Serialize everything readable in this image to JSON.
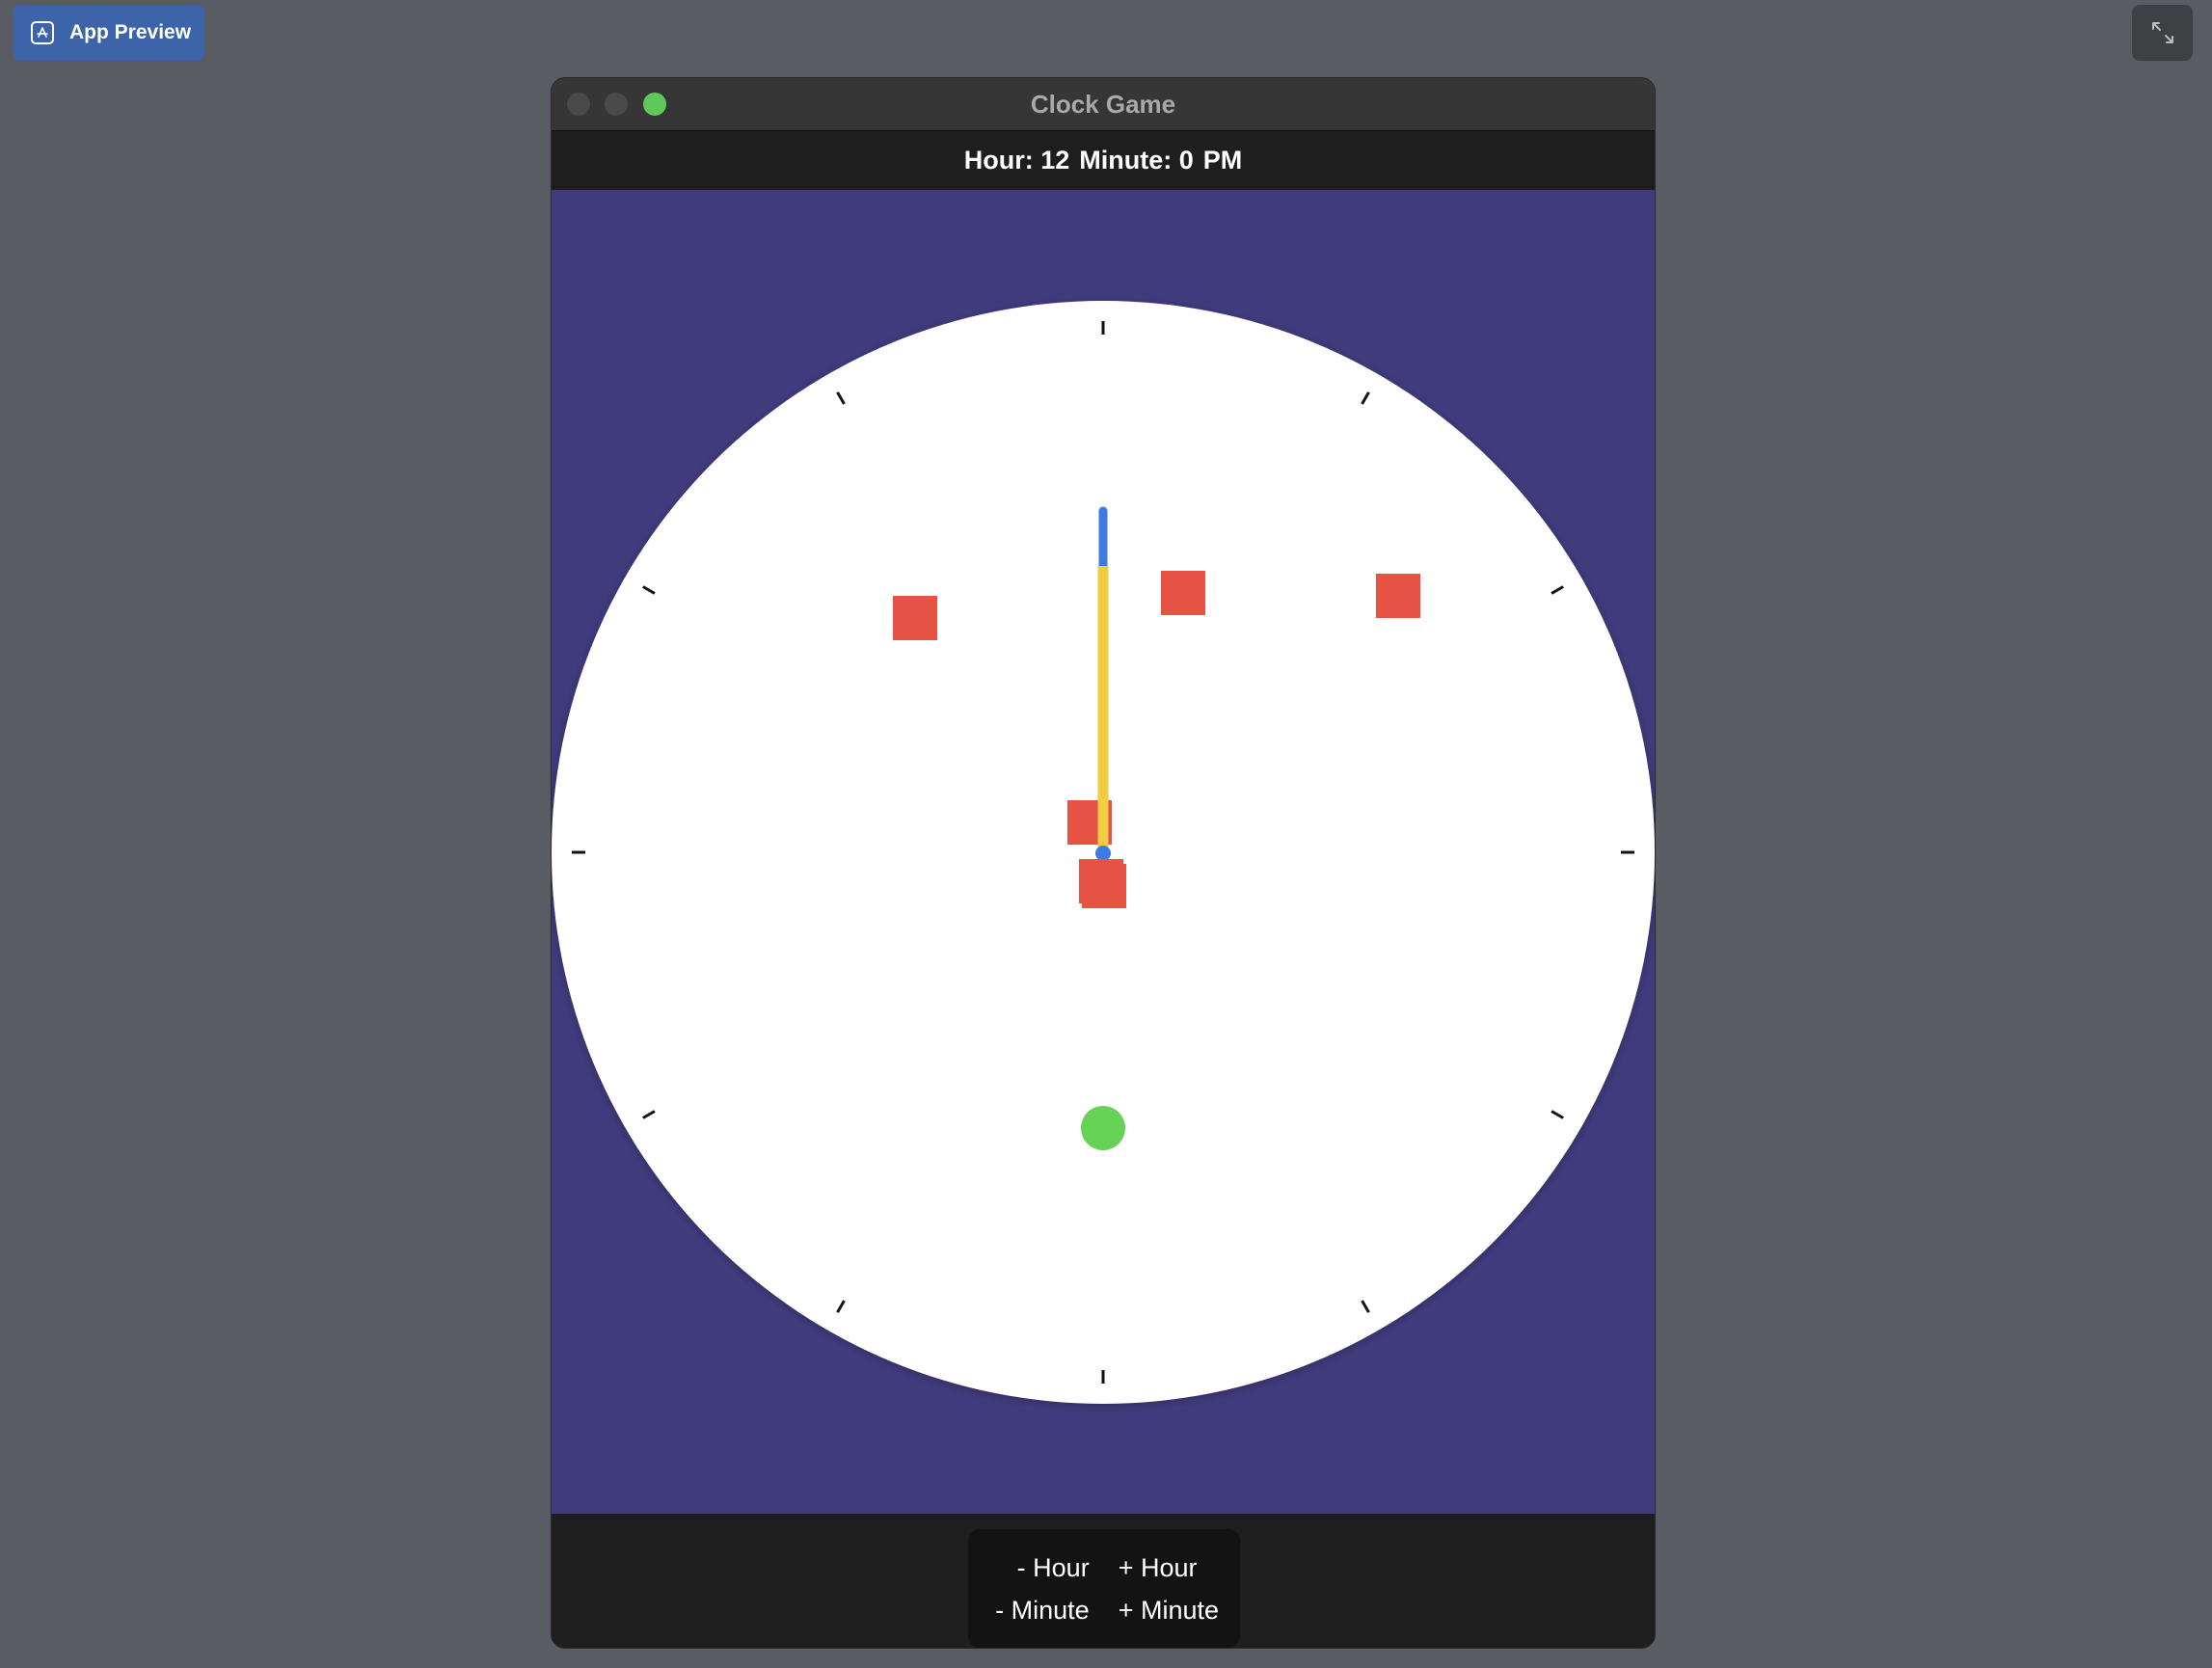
{
  "preview_badge": {
    "label": "App Preview",
    "icon": "app-store-icon"
  },
  "expand_button": {
    "icon": "expand-icon"
  },
  "window": {
    "title": "Clock Game",
    "traffic_lights": [
      {
        "name": "close",
        "color": "#4a4a4a"
      },
      {
        "name": "minimize",
        "color": "#4a4a4a"
      },
      {
        "name": "zoom",
        "color": "#5fc85a"
      }
    ]
  },
  "status": {
    "hour_text": "Hour: 12",
    "minute_text": "Minute: 0",
    "period": "PM"
  },
  "clock": {
    "hour": 12,
    "minute": 0,
    "face_color": "#ffffff",
    "background_color": "#3f3b7c",
    "hour_hand_color": "#f2cd44",
    "minute_hand_color": "#3d7be0",
    "obstacle_color": "#e65244",
    "target_color": "#66d256"
  },
  "controls": {
    "minus_hour": "- Hour",
    "plus_hour": "+ Hour",
    "minus_minute": "- Minute",
    "plus_minute": "+ Minute"
  }
}
